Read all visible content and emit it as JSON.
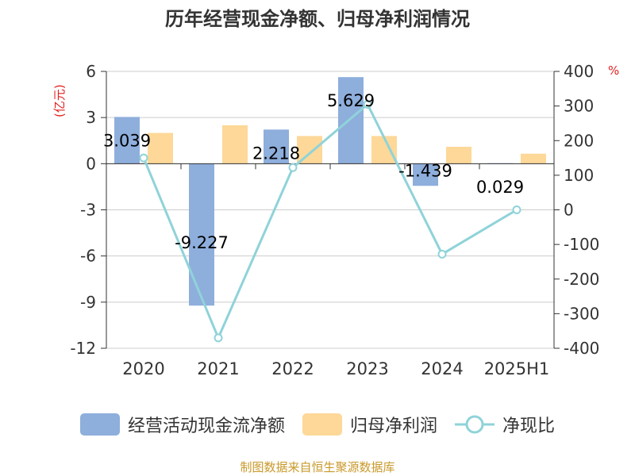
{
  "chart_data": {
    "type": "bar",
    "title": "历年经营现金净额、归母净利润情况",
    "categories": [
      "2020",
      "2021",
      "2022",
      "2023",
      "2024",
      "2025H1"
    ],
    "y_left": {
      "unit": "(亿元)",
      "range": [
        -12,
        6
      ],
      "ticks": [
        6,
        3,
        0,
        -3,
        -6,
        -9,
        -12
      ]
    },
    "y_right": {
      "unit": "%",
      "range": [
        -400,
        400
      ],
      "ticks": [
        400,
        300,
        200,
        100,
        0,
        -100,
        -200,
        -300,
        -400
      ]
    },
    "series": [
      {
        "name": "经营活动现金流净额",
        "type": "bar",
        "axis": "left",
        "color": "#8eaedc",
        "values": [
          3.039,
          -9.227,
          2.218,
          5.629,
          -1.439,
          0.029
        ],
        "labels": [
          "3.039",
          "-9.227",
          "2.218",
          "5.629",
          "-1.439",
          "0.029"
        ]
      },
      {
        "name": "归母净利润",
        "type": "bar",
        "axis": "left",
        "color": "#fdd898",
        "values": [
          2.0,
          2.5,
          1.8,
          1.8,
          1.1,
          0.65
        ]
      },
      {
        "name": "净现比",
        "type": "line",
        "axis": "right",
        "color": "#8fd3d9",
        "values": [
          150,
          -370,
          122,
          305,
          -128,
          0
        ]
      }
    ],
    "grid": true,
    "legend": "bottom"
  },
  "source_text": "制图数据来自恒生聚源数据库"
}
